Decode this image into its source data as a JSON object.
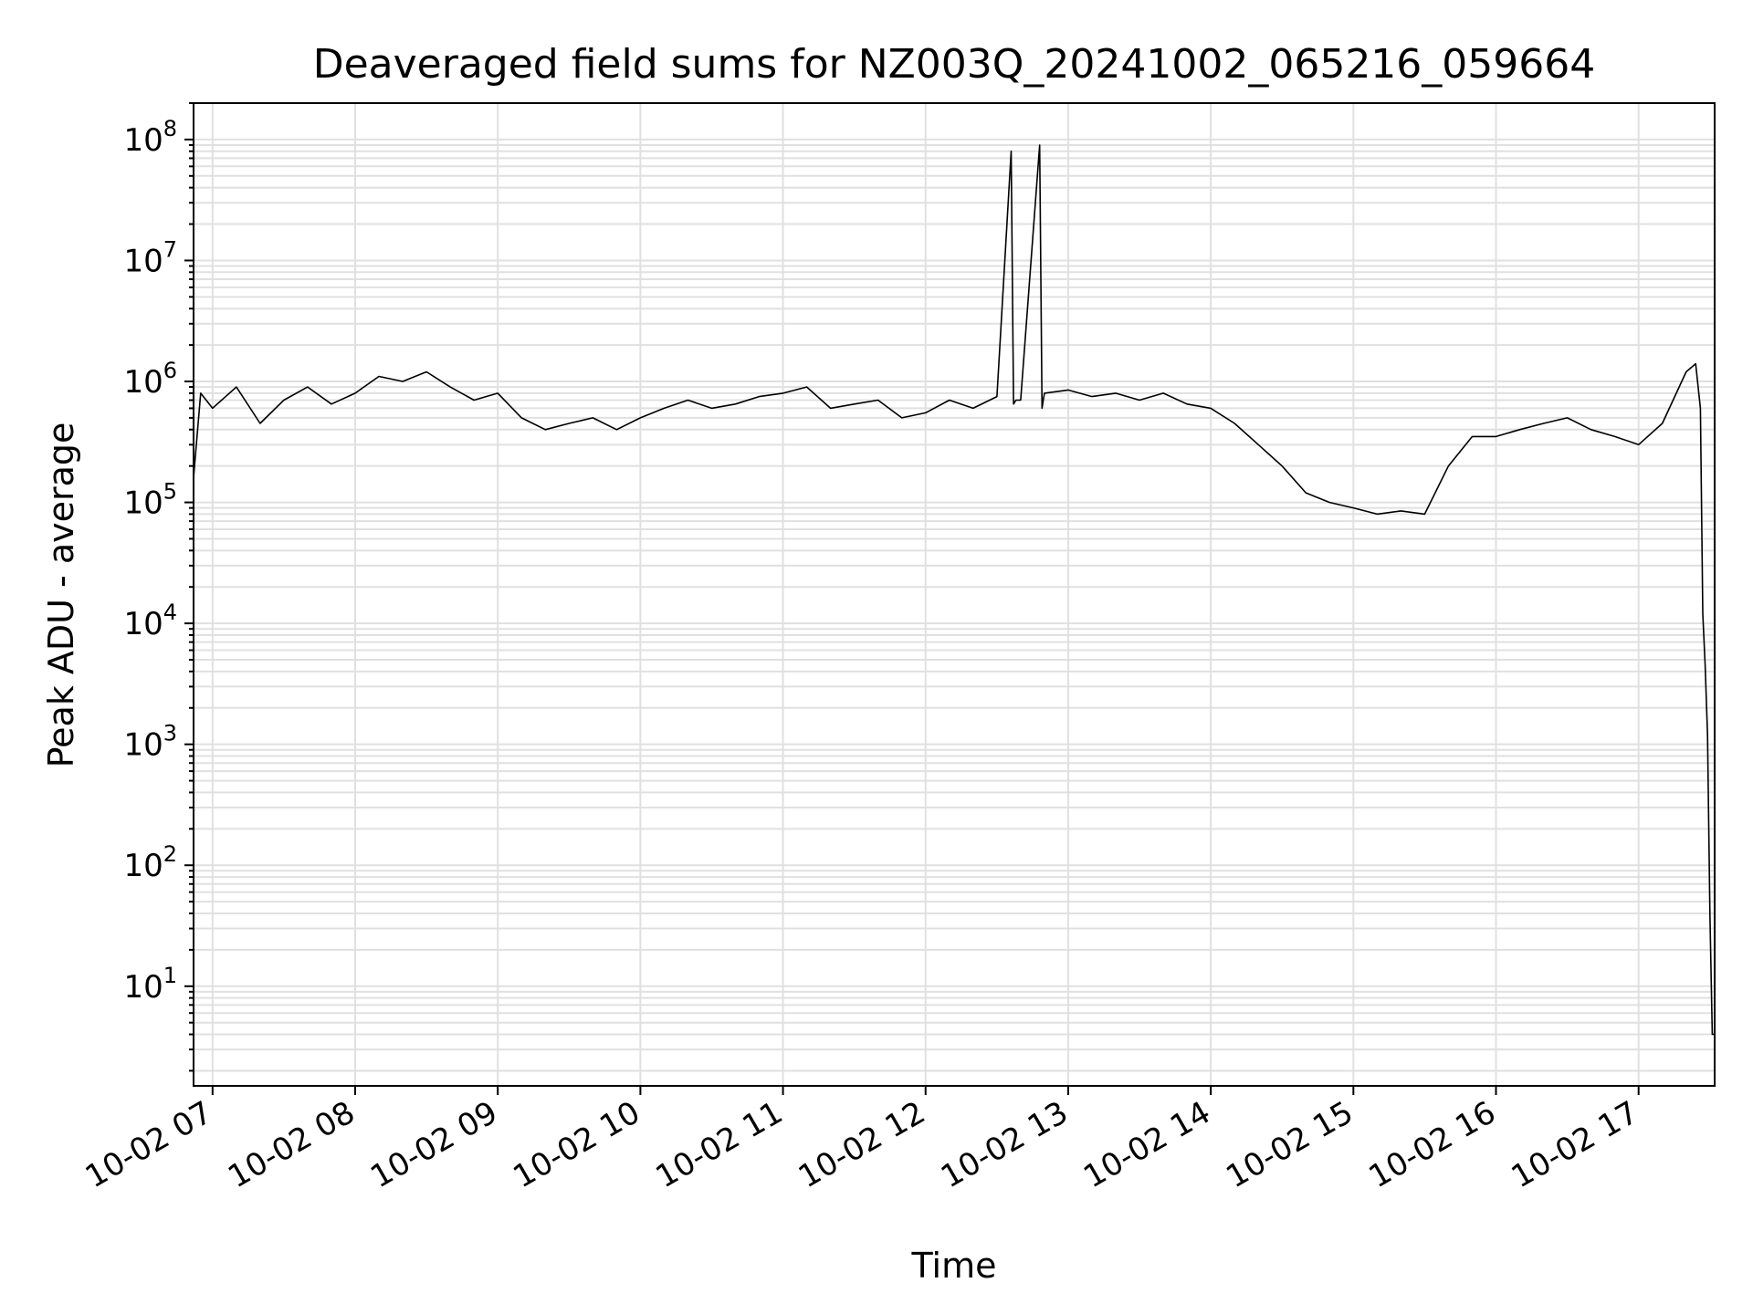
{
  "chart_data": {
    "type": "line",
    "title": "Deaveraged field sums for NZ003Q_20241002_065216_059664",
    "xlabel": "Time",
    "ylabel": "Peak ADU - average",
    "yscale": "log",
    "grid": true,
    "line_color": "#000000",
    "grid_color": "#e0e0e0",
    "xlim": [
      "2024-10-02 06:52",
      "2024-10-02 17:32"
    ],
    "ylim": [
      1.5,
      200000000
    ],
    "x_ticks": [
      {
        "value": "2024-10-02 07:00",
        "label": "10-02 07"
      },
      {
        "value": "2024-10-02 08:00",
        "label": "10-02 08"
      },
      {
        "value": "2024-10-02 09:00",
        "label": "10-02 09"
      },
      {
        "value": "2024-10-02 10:00",
        "label": "10-02 10"
      },
      {
        "value": "2024-10-02 11:00",
        "label": "10-02 11"
      },
      {
        "value": "2024-10-02 12:00",
        "label": "10-02 12"
      },
      {
        "value": "2024-10-02 13:00",
        "label": "10-02 13"
      },
      {
        "value": "2024-10-02 14:00",
        "label": "10-02 14"
      },
      {
        "value": "2024-10-02 15:00",
        "label": "10-02 15"
      },
      {
        "value": "2024-10-02 16:00",
        "label": "10-02 16"
      },
      {
        "value": "2024-10-02 17:00",
        "label": "10-02 17"
      }
    ],
    "y_ticks": [
      {
        "value": 10,
        "base": "10",
        "exp": "1"
      },
      {
        "value": 100,
        "base": "10",
        "exp": "2"
      },
      {
        "value": 1000,
        "base": "10",
        "exp": "3"
      },
      {
        "value": 10000,
        "base": "10",
        "exp": "4"
      },
      {
        "value": 100000,
        "base": "10",
        "exp": "5"
      },
      {
        "value": 1000000,
        "base": "10",
        "exp": "6"
      },
      {
        "value": 10000000,
        "base": "10",
        "exp": "7"
      },
      {
        "value": 100000000,
        "base": "10",
        "exp": "8"
      }
    ],
    "series": [
      {
        "x": [
          "2024-10-02 06:52",
          "2024-10-02 06:55",
          "2024-10-02 07:00",
          "2024-10-02 07:10",
          "2024-10-02 07:20",
          "2024-10-02 07:30",
          "2024-10-02 07:40",
          "2024-10-02 07:50",
          "2024-10-02 08:00",
          "2024-10-02 08:10",
          "2024-10-02 08:20",
          "2024-10-02 08:30",
          "2024-10-02 08:40",
          "2024-10-02 08:50",
          "2024-10-02 09:00",
          "2024-10-02 09:10",
          "2024-10-02 09:20",
          "2024-10-02 09:30",
          "2024-10-02 09:40",
          "2024-10-02 09:50",
          "2024-10-02 10:00",
          "2024-10-02 10:10",
          "2024-10-02 10:20",
          "2024-10-02 10:30",
          "2024-10-02 10:40",
          "2024-10-02 10:50",
          "2024-10-02 11:00",
          "2024-10-02 11:10",
          "2024-10-02 11:20",
          "2024-10-02 11:30",
          "2024-10-02 11:40",
          "2024-10-02 11:50",
          "2024-10-02 12:00",
          "2024-10-02 12:10",
          "2024-10-02 12:20",
          "2024-10-02 12:30",
          "2024-10-02 12:36",
          "2024-10-02 12:37",
          "2024-10-02 12:38",
          "2024-10-02 12:40",
          "2024-10-02 12:48",
          "2024-10-02 12:49",
          "2024-10-02 12:50",
          "2024-10-02 13:00",
          "2024-10-02 13:10",
          "2024-10-02 13:20",
          "2024-10-02 13:30",
          "2024-10-02 13:40",
          "2024-10-02 13:50",
          "2024-10-02 14:00",
          "2024-10-02 14:10",
          "2024-10-02 14:20",
          "2024-10-02 14:30",
          "2024-10-02 14:40",
          "2024-10-02 14:50",
          "2024-10-02 15:00",
          "2024-10-02 15:10",
          "2024-10-02 15:20",
          "2024-10-02 15:30",
          "2024-10-02 15:40",
          "2024-10-02 15:50",
          "2024-10-02 16:00",
          "2024-10-02 16:10",
          "2024-10-02 16:20",
          "2024-10-02 16:30",
          "2024-10-02 16:40",
          "2024-10-02 16:50",
          "2024-10-02 17:00",
          "2024-10-02 17:10",
          "2024-10-02 17:20",
          "2024-10-02 17:24",
          "2024-10-02 17:26",
          "2024-10-02 17:27",
          "2024-10-02 17:28",
          "2024-10-02 17:29",
          "2024-10-02 17:30",
          "2024-10-02 17:31",
          "2024-10-02 17:32"
        ],
        "y": [
          160000,
          800000,
          600000,
          900000,
          450000,
          700000,
          900000,
          650000,
          800000,
          1100000,
          1000000,
          1200000,
          900000,
          700000,
          800000,
          500000,
          400000,
          450000,
          500000,
          400000,
          500000,
          600000,
          700000,
          600000,
          650000,
          750000,
          800000,
          900000,
          600000,
          650000,
          700000,
          500000,
          550000,
          700000,
          600000,
          750000,
          80000000,
          650000,
          700000,
          700000,
          90000000,
          600000,
          800000,
          850000,
          750000,
          800000,
          700000,
          800000,
          650000,
          600000,
          450000,
          300000,
          200000,
          120000,
          100000,
          90000,
          80000,
          85000,
          80000,
          200000,
          350000,
          350000,
          400000,
          450000,
          500000,
          400000,
          350000,
          300000,
          450000,
          1200000,
          1400000,
          600000,
          12000,
          4500,
          1200,
          40,
          4,
          4
        ]
      }
    ]
  }
}
